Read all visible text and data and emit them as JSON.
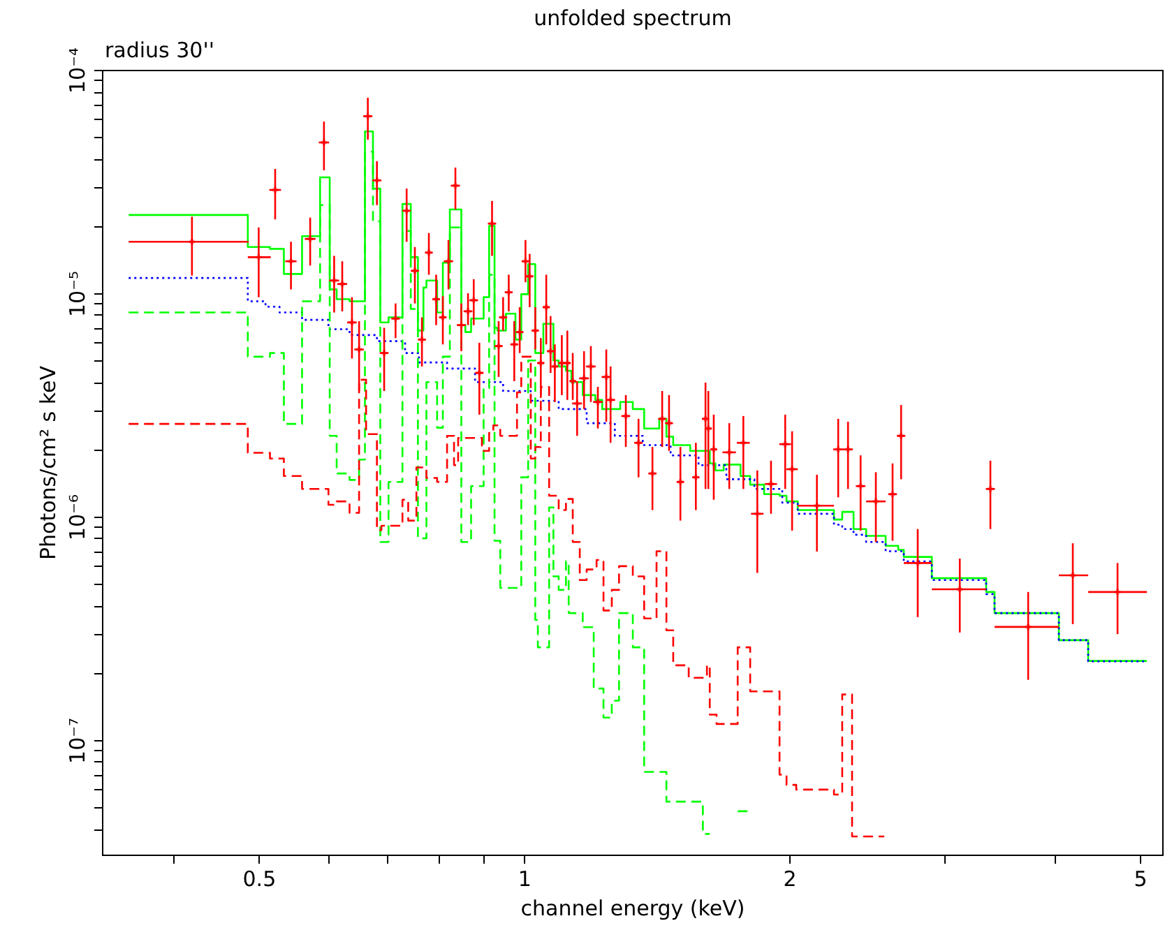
{
  "chart_data": {
    "type": "step",
    "title": "unfolded spectrum",
    "xlabel": "channel energy (keV)",
    "ylabel": "Photons/cm² s keV",
    "annotations": [
      "radius 30''"
    ],
    "log": "xy",
    "grid": false,
    "xlim": [
      0.332,
      5.3
    ],
    "ylim": [
      3.07e-08,
      0.0001
    ],
    "xticks": [
      {
        "value": 0.4,
        "label": null
      },
      0.5,
      {
        "value": 0.6,
        "label": null
      },
      {
        "value": 0.7,
        "label": null
      },
      {
        "value": 0.8,
        "label": null
      },
      {
        "value": 0.9,
        "label": null
      },
      1,
      2,
      {
        "value": 3,
        "label": null
      },
      {
        "value": 4,
        "label": null
      },
      5
    ],
    "yticks": [
      {
        "value": 4e-08,
        "label": null
      },
      {
        "value": 5e-08,
        "label": null
      },
      {
        "value": 6e-08,
        "label": null
      },
      {
        "value": 7e-08,
        "label": null
      },
      {
        "value": 8e-08,
        "label": null
      },
      {
        "value": 9e-08,
        "label": null
      },
      {
        "value": 1e-07,
        "label": "10⁻⁷"
      },
      {
        "value": 2e-07,
        "label": null
      },
      {
        "value": 3e-07,
        "label": null
      },
      {
        "value": 4e-07,
        "label": null
      },
      {
        "value": 5e-07,
        "label": null
      },
      {
        "value": 6e-07,
        "label": null
      },
      {
        "value": 7e-07,
        "label": null
      },
      {
        "value": 8e-07,
        "label": null
      },
      {
        "value": 9e-07,
        "label": null
      },
      {
        "value": 1e-06,
        "label": "10⁻⁶"
      },
      {
        "value": 2e-06,
        "label": null
      },
      {
        "value": 3e-06,
        "label": null
      },
      {
        "value": 4e-06,
        "label": null
      },
      {
        "value": 5e-06,
        "label": null
      },
      {
        "value": 6e-06,
        "label": null
      },
      {
        "value": 7e-06,
        "label": null
      },
      {
        "value": 8e-06,
        "label": null
      },
      {
        "value": 9e-06,
        "label": null
      },
      {
        "value": 1e-05,
        "label": "10⁻⁵"
      },
      {
        "value": 2e-05,
        "label": null
      },
      {
        "value": 3e-05,
        "label": null
      },
      {
        "value": 4e-05,
        "label": null
      },
      {
        "value": 5e-05,
        "label": null
      },
      {
        "value": 6e-05,
        "label": null
      },
      {
        "value": 7e-05,
        "label": null
      },
      {
        "value": 8e-05,
        "label": null
      },
      {
        "value": 9e-05,
        "label": null
      },
      {
        "value": 0.0001,
        "label": "10⁻⁴"
      }
    ],
    "series": [
      {
        "color": "#00ff00",
        "line_style": "solid",
        "x": [
          0.356,
          0.486,
          0.515,
          0.534,
          0.56,
          0.587,
          0.602,
          0.613,
          0.634,
          0.66,
          0.674,
          0.687,
          0.702,
          0.728,
          0.744,
          0.758,
          0.769,
          0.775,
          0.797,
          0.809,
          0.824,
          0.849,
          0.858,
          0.871,
          0.9,
          0.913,
          0.926,
          0.933,
          0.954,
          0.978,
          0.993,
          1.011,
          1.03,
          1.052,
          1.08,
          1.095,
          1.116,
          1.132,
          1.166,
          1.205,
          1.227,
          1.286,
          1.329,
          1.369,
          1.424,
          1.451,
          1.477,
          1.544,
          1.625,
          1.649,
          1.685,
          1.761,
          1.806,
          1.873,
          1.95,
          1.986,
          2.045,
          2.248,
          2.297,
          2.366,
          2.445,
          2.573,
          2.659,
          2.698,
          2.903,
          3.346,
          3.42,
          4.046,
          4.368,
          5.092
        ],
        "values": [
          2.24e-05,
          1.61e-05,
          1.58e-05,
          1.22e-05,
          1.8e-05,
          3.3e-05,
          1.04e-05,
          9.4e-06,
          9.2e-06,
          5.3e-05,
          2.94e-05,
          7.4e-06,
          7.8e-06,
          2.51e-05,
          1.45e-05,
          6.8e-06,
          1.06e-05,
          1.14e-05,
          8.2e-06,
          1.37e-05,
          2.37e-05,
          7.2e-06,
          6.7e-06,
          7.7e-06,
          9.6e-06,
          2e-05,
          7e-06,
          6.8e-06,
          8.1e-06,
          6.2e-06,
          9.9e-06,
          1.35e-05,
          5.4e-06,
          7.3e-06,
          5e-06,
          4.7e-06,
          4.5e-06,
          4e-06,
          3.5e-06,
          3.33e-06,
          3.03e-06,
          3.26e-06,
          3.03e-06,
          2.48e-06,
          2.74e-06,
          2.28e-06,
          2.09e-06,
          1.97e-06,
          1.73e-06,
          1.61e-06,
          1.71e-06,
          1.52e-06,
          1.39e-06,
          1.26e-06,
          1.24e-06,
          1.17e-06,
          1.07e-06,
          9.7e-07,
          1.05e-06,
          8.8e-07,
          8.2e-07,
          7.4e-07,
          7.1e-07,
          6.6e-07,
          5.3e-07,
          4.6e-07,
          3.7e-07,
          2.8e-07,
          2.26e-07,
          2.26e-07
        ]
      },
      {
        "color": "#0000ff",
        "line_style": "dotted",
        "x": [
          0.356,
          0.486,
          0.509,
          0.528,
          0.56,
          0.6,
          0.634,
          0.681,
          0.733,
          0.76,
          0.818,
          0.88,
          0.947,
          1.018,
          1.095,
          1.178,
          1.268,
          1.364,
          1.467,
          1.578,
          1.697,
          1.826,
          1.964,
          2.045,
          2.248,
          2.297,
          2.366,
          2.445,
          2.573,
          2.698,
          2.903,
          3.346,
          3.42,
          4.046,
          4.368,
          5.092
        ],
        "values": [
          1.17e-05,
          9.2e-06,
          8.7e-06,
          8.2e-06,
          7.6e-06,
          6.9e-06,
          6.5e-06,
          6.1e-06,
          5.4e-06,
          4.9e-06,
          4.6e-06,
          4e-06,
          3.65e-06,
          3.3e-06,
          3.03e-06,
          2.62e-06,
          2.3e-06,
          2.09e-06,
          1.88e-06,
          1.7e-06,
          1.47e-06,
          1.33e-06,
          1.155e-06,
          1.03e-06,
          9.2e-07,
          8.8e-07,
          8.3e-07,
          7.7e-07,
          7e-07,
          6.3e-07,
          5.2e-07,
          4.5e-07,
          3.7e-07,
          2.8e-07,
          2.25e-07,
          2.25e-07
        ]
      },
      {
        "color": "#00ff00",
        "line_style": "dashed",
        "x": [
          0.356,
          0.486,
          0.515,
          0.534,
          0.56,
          0.587,
          0.602,
          0.613,
          0.634,
          0.65,
          0.66,
          0.674,
          0.687,
          0.702,
          0.728,
          0.744,
          0.758,
          0.775,
          0.797,
          0.809,
          0.824,
          0.849,
          0.871,
          0.9,
          0.913,
          0.926,
          0.94,
          0.993,
          1.011,
          1.03,
          1.037,
          1.068,
          1.08,
          1.095,
          1.116,
          1.124,
          1.166,
          1.2,
          1.231,
          1.258,
          1.282,
          1.329,
          1.369,
          1.451,
          1.596,
          1.625,
          1.748,
          1.806
        ],
        "values": [
          8.2e-06,
          5.2e-06,
          5.4e-06,
          2.6e-06,
          9.2e-06,
          2.48e-05,
          2.3e-06,
          1.56e-06,
          1.46e-06,
          1.8e-06,
          4.3e-05,
          2.1e-05,
          7.7e-07,
          1.43e-06,
          1.9e-05,
          8.5e-06,
          8e-07,
          4e-06,
          2.5e-06,
          5.2e-06,
          1.97e-05,
          7.7e-07,
          1.37e-06,
          3.75e-06,
          1.21e-05,
          7.8e-07,
          4.8e-07,
          1.5e-06,
          5e-06,
          3.45e-07,
          2.6e-07,
          1.1e-06,
          5.4e-07,
          4.7e-07,
          6.3e-07,
          3.7e-07,
          3.2e-07,
          1.7e-07,
          1.26e-07,
          1.5e-07,
          3.7e-07,
          2.6e-07,
          7.2e-08,
          5.3e-08,
          3.8e-08,
          null,
          4.8e-08,
          4.8e-08
        ]
      },
      {
        "color": "#ff0000",
        "line_style": "dashed",
        "x": [
          0.356,
          0.486,
          0.515,
          0.534,
          0.56,
          0.6,
          0.613,
          0.634,
          0.65,
          0.662,
          0.681,
          0.689,
          0.728,
          0.739,
          0.755,
          0.775,
          0.797,
          0.818,
          0.833,
          0.842,
          0.896,
          0.913,
          0.923,
          0.94,
          0.982,
          0.993,
          1.018,
          1.03,
          1.045,
          1.068,
          1.095,
          1.116,
          1.136,
          1.157,
          1.178,
          1.209,
          1.231,
          1.258,
          1.282,
          1.329,
          1.369,
          1.414,
          1.451,
          1.477,
          1.538,
          1.613,
          1.625,
          1.654,
          1.748,
          1.806,
          1.95,
          1.986,
          2.037,
          2.248,
          2.297,
          2.357,
          2.564
        ],
        "values": [
          2.6e-06,
          1.93e-06,
          1.82e-06,
          1.52e-06,
          1.33e-06,
          1.13e-06,
          1.17e-06,
          1.04e-06,
          4.1e-06,
          2.34e-06,
          8.7e-07,
          9.1e-07,
          1.19e-06,
          9.6e-07,
          1.66e-06,
          1.49e-06,
          1.43e-06,
          2.3e-06,
          1.7e-06,
          2.25e-06,
          1.97e-06,
          2.37e-06,
          2.56e-06,
          2.3e-06,
          3.6e-06,
          5.2e-06,
          1.82e-06,
          2.05e-06,
          3.8e-06,
          1.24e-06,
          1.07e-06,
          1.2e-06,
          7.7e-07,
          5.2e-07,
          5.8e-07,
          6.4e-07,
          3.8e-07,
          4.7e-07,
          6e-07,
          5.4e-07,
          3.5e-07,
          7e-07,
          3.1e-07,
          2.16e-07,
          1.9e-07,
          2.16e-07,
          1.3e-07,
          1.18e-07,
          2.6e-07,
          1.65e-07,
          7e-08,
          6.3e-08,
          6e-08,
          5.7e-08,
          1.6e-07,
          3.7e-08,
          3.7e-08
        ]
      },
      {
        "type": "scatter",
        "color": "#ff0000",
        "marker": "cross",
        "x": [
          0.42,
          0.5,
          0.522,
          0.544,
          0.572,
          0.593,
          0.609,
          0.622,
          0.638,
          0.65,
          0.665,
          0.681,
          0.694,
          0.715,
          0.736,
          0.752,
          0.766,
          0.78,
          0.795,
          0.809,
          0.821,
          0.836,
          0.849,
          0.864,
          0.877,
          0.89,
          0.92,
          0.936,
          0.947,
          0.961,
          0.975,
          0.989,
          1.004,
          1.015,
          1.03,
          1.045,
          1.06,
          1.072,
          1.084,
          1.104,
          1.12,
          1.136,
          1.149,
          1.17,
          1.191,
          1.213,
          1.24,
          1.254,
          1.305,
          1.349,
          1.399,
          1.435,
          1.461,
          1.505,
          1.567,
          1.607,
          1.619,
          1.642,
          1.71,
          1.774,
          1.84,
          1.907,
          1.979,
          2.015,
          2.15,
          2.273,
          2.332,
          2.41,
          2.508,
          2.62,
          2.679,
          2.798,
          3.123,
          3.383,
          3.734,
          4.196,
          4.716
        ],
        "values": [
          1.7e-05,
          1.45e-05,
          2.9e-05,
          1.39e-05,
          1.75e-05,
          4.73e-05,
          1.14e-05,
          1.1e-05,
          7.4e-06,
          5.6e-06,
          6.2e-05,
          3.2e-05,
          5.4e-06,
          7.7e-06,
          2.34e-05,
          1.26e-05,
          6.2e-06,
          1.52e-05,
          9.4e-06,
          7.8e-06,
          1.39e-05,
          3.03e-05,
          7.2e-06,
          8.3e-06,
          9.3e-06,
          4.4e-06,
          2.05e-05,
          5.8e-06,
          7.8e-06,
          1.01e-05,
          5.9e-06,
          6.7e-06,
          1.39e-05,
          1.19e-05,
          6.8e-06,
          4.87e-06,
          8.66e-06,
          5.5e-06,
          4.7e-06,
          4.87e-06,
          4.87e-06,
          4.04e-06,
          3.21e-06,
          4.16e-06,
          4.7e-06,
          3.26e-06,
          4.22e-06,
          3.33e-06,
          2.82e-06,
          2.14e-06,
          1.56e-06,
          2.74e-06,
          2.62e-06,
          1.43e-06,
          1.5e-06,
          2.74e-06,
          2.48e-06,
          2e-06,
          1.94e-06,
          2.14e-06,
          1.03e-06,
          1.4e-06,
          2.11e-06,
          1.63e-06,
          1.12e-06,
          2e-06,
          2e-06,
          1.37e-06,
          1.17e-06,
          1.26e-06,
          2.3e-06,
          6.2e-07,
          4.73e-07,
          1.33e-06,
          3.21e-07,
          5.46e-07,
          4.6e-07
        ],
        "errors": [
          [
            1.2e-05,
            2.2e-05
          ],
          [
            9.6e-06,
            1.97e-05
          ],
          [
            2.14e-05,
            3.6e-05
          ],
          [
            1.04e-05,
            1.7e-05
          ],
          [
            1.33e-05,
            2.18e-05
          ],
          [
            3.55e-05,
            5.87e-05
          ],
          [
            8.2e-06,
            1.47e-05
          ],
          [
            8.3e-06,
            1.39e-05
          ],
          [
            5.1e-06,
            9.6e-06
          ],
          [
            3.65e-06,
            7.5e-06
          ],
          [
            4.87e-05,
            7.5e-05
          ],
          [
            2.48e-05,
            3.9e-05
          ],
          [
            3.65e-06,
            7e-06
          ],
          [
            6.3e-06,
            9e-06
          ],
          [
            1.7e-05,
            2.94e-05
          ],
          [
            9e-06,
            1.61e-05
          ],
          [
            4.7e-06,
            7.8e-06
          ],
          [
            1.21e-05,
            1.86e-05
          ],
          [
            7.2e-06,
            1.21e-05
          ],
          [
            5.9e-06,
            9.7e-06
          ],
          [
            1.04e-05,
            1.73e-05
          ],
          [
            2.37e-05,
            3.65e-05
          ],
          [
            5.5e-06,
            9e-06
          ],
          [
            7.2e-06,
            1e-05
          ],
          [
            7.2e-06,
            1.155e-05
          ],
          [
            2.86e-06,
            6e-06
          ],
          [
            1.47e-05,
            2.59e-05
          ],
          [
            4.22e-06,
            7.5e-06
          ],
          [
            6.8e-06,
            9.6e-06
          ],
          [
            8.3e-06,
            1.21e-05
          ],
          [
            4.04e-06,
            7.5e-06
          ],
          [
            5.4e-06,
            8.66e-06
          ],
          [
            1.12e-05,
            1.73e-05
          ],
          [
            8.66e-06,
            1.5e-05
          ],
          [
            5.6e-06,
            8.66e-06
          ],
          [
            3.4e-06,
            6.3e-06
          ],
          [
            5.9e-06,
            1.21e-05
          ],
          [
            4.4e-06,
            7.9e-06
          ],
          [
            3.26e-06,
            5.9e-06
          ],
          [
            3.5e-06,
            6.49e-06
          ],
          [
            3.33e-06,
            6.8e-06
          ],
          [
            3.33e-06,
            5.4e-06
          ],
          [
            2.3e-06,
            4.04e-06
          ],
          [
            3.03e-06,
            5.5e-06
          ],
          [
            3.26e-06,
            5.8e-06
          ],
          [
            2.48e-06,
            3.81e-06
          ],
          [
            2.66e-06,
            5.6e-06
          ],
          [
            2.14e-06,
            4.7e-06
          ],
          [
            2.05e-06,
            3.5e-06
          ],
          [
            1.5e-06,
            2.74e-06
          ],
          [
            1.07e-06,
            2.05e-06
          ],
          [
            2.05e-06,
            3.65e-06
          ],
          [
            1.97e-06,
            3.5e-06
          ],
          [
            9.6e-07,
            2.05e-06
          ],
          [
            1.07e-06,
            2.14e-06
          ],
          [
            1.33e-06,
            3.98e-06
          ],
          [
            1.33e-06,
            3.65e-06
          ],
          [
            1.19e-06,
            2.86e-06
          ],
          [
            1.33e-06,
            2.62e-06
          ],
          [
            1.33e-06,
            2.82e-06
          ],
          [
            5.6e-07,
            1.61e-06
          ],
          [
            1.03e-06,
            1.78e-06
          ],
          [
            1.33e-06,
            2.86e-06
          ],
          [
            8.66e-07,
            2.41e-06
          ],
          [
            6.98e-07,
            1.54e-06
          ],
          [
            1.22e-06,
            2.74e-06
          ],
          [
            1.33e-06,
            2.66e-06
          ],
          [
            8.66e-07,
            1.88e-06
          ],
          [
            7.7e-07,
            1.58e-06
          ],
          [
            7.8e-07,
            1.73e-06
          ],
          [
            1.47e-06,
            3.16e-06
          ],
          [
            3.55e-07,
            8.8e-07
          ],
          [
            3.03e-07,
            6.49e-07
          ],
          [
            8.8e-07,
            1.78e-06
          ],
          [
            1.86e-07,
            4.6e-07
          ],
          [
            3.3e-07,
            7.6e-07
          ],
          [
            2.98e-07,
            6.2e-07
          ]
        ],
        "xerrors": [
          [
            0.356,
            0.487
          ],
          [
            0.486,
            0.516
          ],
          0.008,
          0.008,
          0.008,
          0.008,
          0.008,
          0.008,
          0.008,
          0.008,
          0.008,
          0.008,
          0.008,
          0.008,
          0.008,
          0.008,
          0.008,
          0.008,
          0.008,
          0.008,
          0.01,
          0.01,
          0.01,
          0.01,
          0.01,
          0.01,
          0.01,
          0.01,
          0.01,
          0.01,
          0.01,
          0.01,
          0.01,
          0.01,
          0.01,
          0.01,
          0.01,
          0.01,
          0.01,
          0.01,
          0.01,
          0.01,
          0.015,
          0.015,
          0.015,
          0.015,
          0.015,
          0.015,
          0.015,
          0.015,
          0.015,
          0.015,
          0.015,
          0.015,
          0.015,
          0.015,
          0.015,
          0.015,
          0.03,
          0.03,
          0.03,
          0.03,
          0.03,
          0.03,
          [
            2.045,
            2.248
          ],
          0.03,
          0.03,
          0.03,
          [
            2.445,
            2.573
          ],
          0.03,
          0.03,
          [
            2.698,
            2.903
          ],
          [
            2.903,
            3.346
          ],
          0.04,
          [
            3.42,
            4.046
          ],
          [
            4.046,
            4.368
          ],
          [
            4.368,
            5.092
          ]
        ]
      }
    ]
  }
}
